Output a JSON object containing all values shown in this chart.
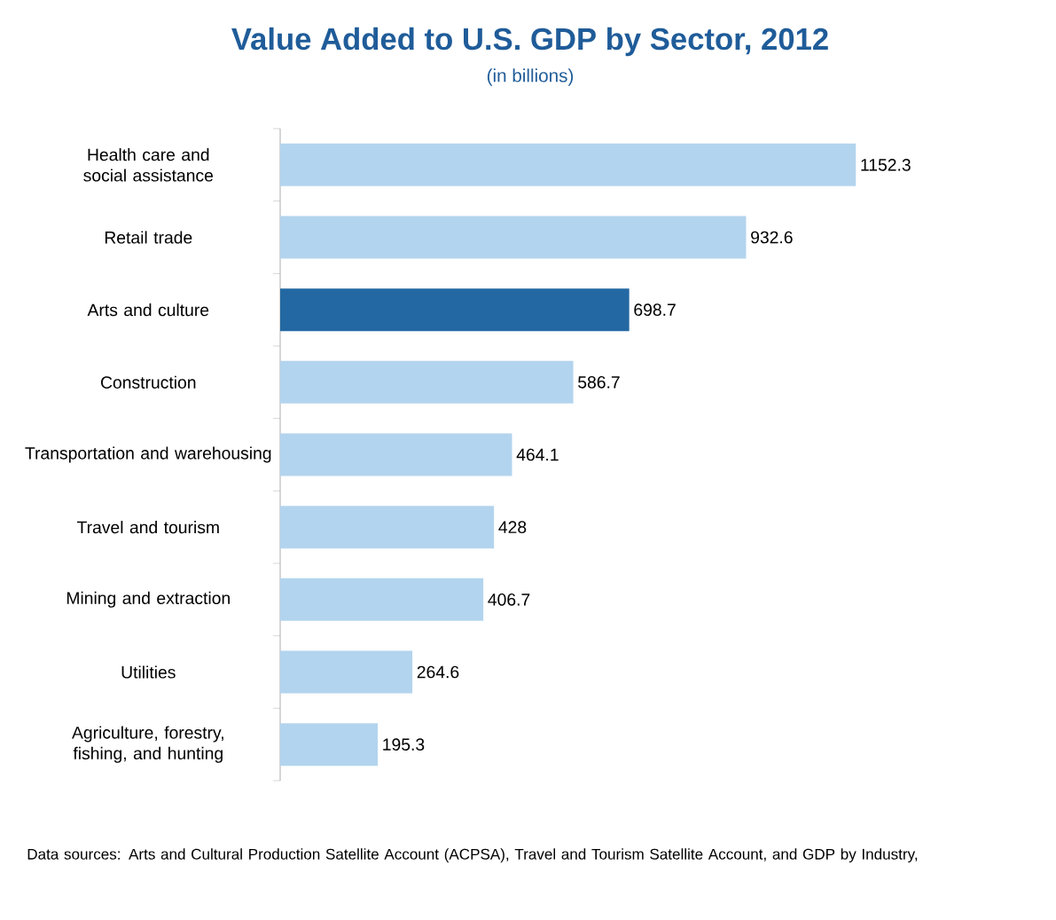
{
  "chart_data": {
    "type": "bar",
    "orientation": "horizontal",
    "title": "Value Added to U.S. GDP by Sector, 2012",
    "subtitle": "(in billions)",
    "categories": [
      "Health care and social assistance",
      "Retail trade",
      "Arts and culture",
      "Construction",
      "Transportation and warehousing",
      "Travel and tourism",
      "Mining and extraction",
      "Utilities",
      "Agriculture, forestry, fishing, and hunting"
    ],
    "values": [
      1152.3,
      932.6,
      698.7,
      586.7,
      464.1,
      428,
      406.7,
      264.6,
      195.3
    ],
    "colors": [
      "#b3d4ee",
      "#b3d4ee",
      "#2368a2",
      "#b3d4ee",
      "#b3d4ee",
      "#b3d4ee",
      "#b3d4ee",
      "#b3d4ee",
      "#b3d4ee"
    ],
    "data_labels": true,
    "annotations": [
      "Data sources: Arts and Cultural Production Satellite Account (ACPSA), Travel and Tourism Satellite Account, and GDP by Industry,"
    ]
  }
}
